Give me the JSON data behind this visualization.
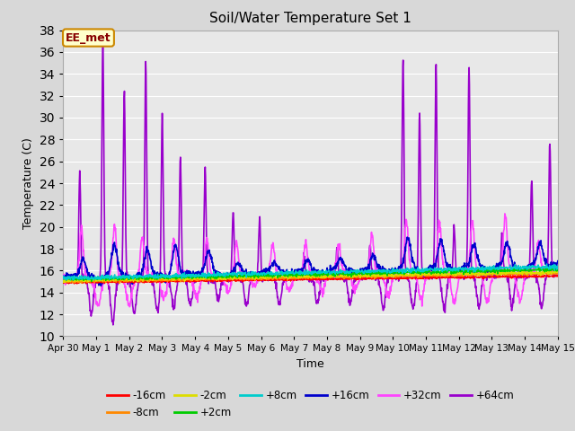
{
  "title": "Soil/Water Temperature Set 1",
  "xlabel": "Time",
  "ylabel": "Temperature (C)",
  "ylim": [
    10,
    38
  ],
  "yticks": [
    10,
    12,
    14,
    16,
    18,
    20,
    22,
    24,
    26,
    28,
    30,
    32,
    34,
    36,
    38
  ],
  "xlim": [
    0,
    15
  ],
  "background_color": "#d8d8d8",
  "plot_bg_color": "#e8e8e8",
  "grid_color": "#ffffff",
  "annotation_text": "EE_met",
  "annotation_bg": "#ffffcc",
  "annotation_border": "#cc8800",
  "annotation_text_color": "#880000",
  "series_colors": {
    "-16cm": "#ff0000",
    "-8cm": "#ff8800",
    "-2cm": "#dddd00",
    "+2cm": "#00cc00",
    "+8cm": "#00cccc",
    "+16cm": "#0000cc",
    "+32cm": "#ff44ff",
    "+64cm": "#9900cc"
  },
  "xtick_days": [
    0,
    1,
    2,
    3,
    4,
    5,
    6,
    7,
    8,
    9,
    10,
    11,
    12,
    13,
    14,
    15
  ],
  "xtick_labels": [
    "Apr 30",
    "May 1",
    "May 2",
    "May 3",
    "May 4",
    "May 5",
    "May 6",
    "May 7",
    "May 8",
    "May 9",
    "May 10",
    "May 11",
    "May 12",
    "May 13",
    "May 14",
    "May 15"
  ]
}
